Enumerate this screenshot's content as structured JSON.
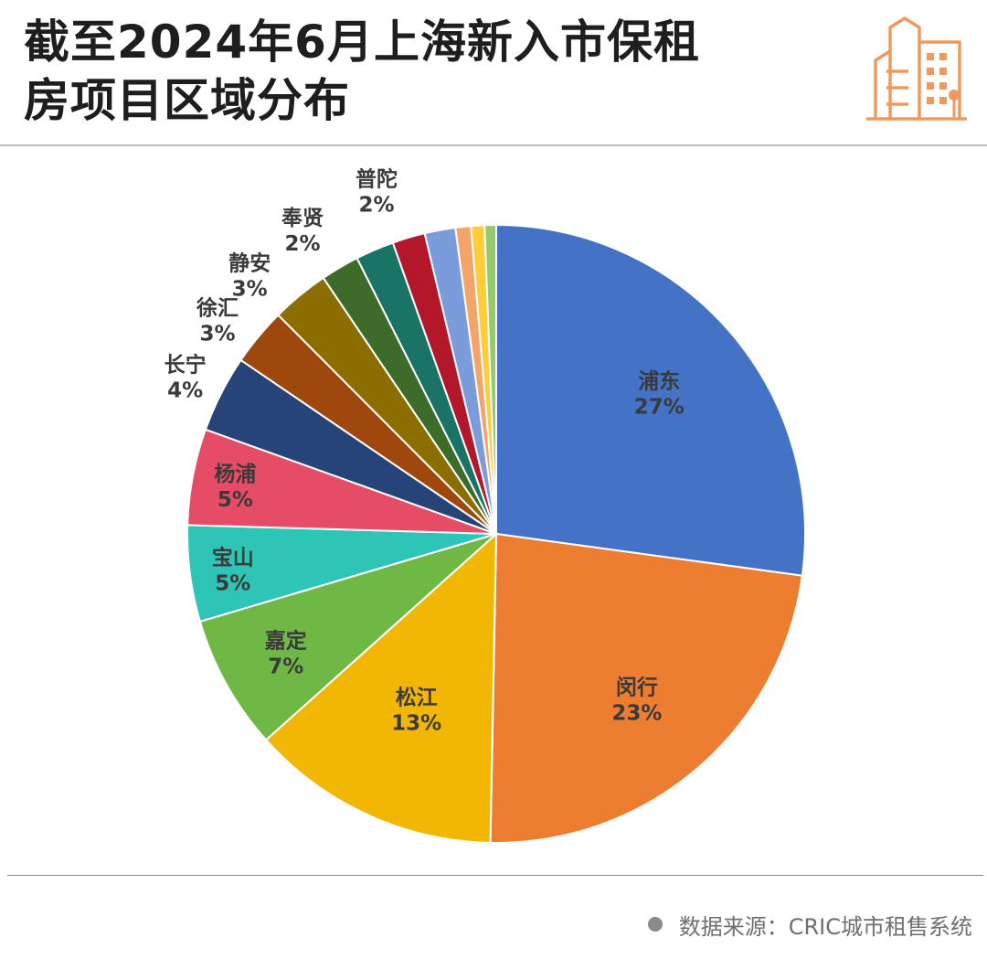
{
  "header": {
    "title_line1": "截至2024年6月上海新入市保租",
    "title_line2": "房项目区域分布"
  },
  "footer": {
    "source_label": "数据来源：",
    "source_value": "CRIC城市租售系统"
  },
  "chart_data": {
    "type": "pie",
    "title": "截至2024年6月上海新入市保租房项目区域分布",
    "slices": [
      {
        "name": "浦东",
        "value": 27,
        "label": "27%",
        "color": "#4472c4"
      },
      {
        "name": "闵行",
        "value": 23,
        "label": "23%",
        "color": "#ed7d31"
      },
      {
        "name": "松江",
        "value": 13,
        "label": "13%",
        "color": "#f2b705"
      },
      {
        "name": "嘉定",
        "value": 7,
        "label": "7%",
        "color": "#70b846"
      },
      {
        "name": "宝山",
        "value": 5,
        "label": "5%",
        "color": "#2ec4b6"
      },
      {
        "name": "杨浦",
        "value": 5,
        "label": "5%",
        "color": "#e64c65"
      },
      {
        "name": "长宁",
        "value": 4,
        "label": "4%",
        "color": "#264478"
      },
      {
        "name": "徐汇",
        "value": 3,
        "label": "3%",
        "color": "#9e480e"
      },
      {
        "name": "静安",
        "value": 3,
        "label": "3%",
        "color": "#8c6d00"
      },
      {
        "name": "奉贤",
        "value": 2,
        "label": "2%",
        "color": "#3d6b2a"
      },
      {
        "name": "普陀",
        "value": 2,
        "label": "2%",
        "color": "#1a7466"
      },
      {
        "name": "",
        "value": 1.7,
        "label": "",
        "color": "#b3172a"
      },
      {
        "name": "",
        "value": 1.6,
        "label": "",
        "color": "#7a9cdb"
      },
      {
        "name": "",
        "value": 0.8,
        "label": "",
        "color": "#f4a468"
      },
      {
        "name": "",
        "value": 0.7,
        "label": "",
        "color": "#ffcd3a"
      },
      {
        "name": "",
        "value": 0.6,
        "label": "",
        "color": "#94c96e"
      }
    ]
  }
}
